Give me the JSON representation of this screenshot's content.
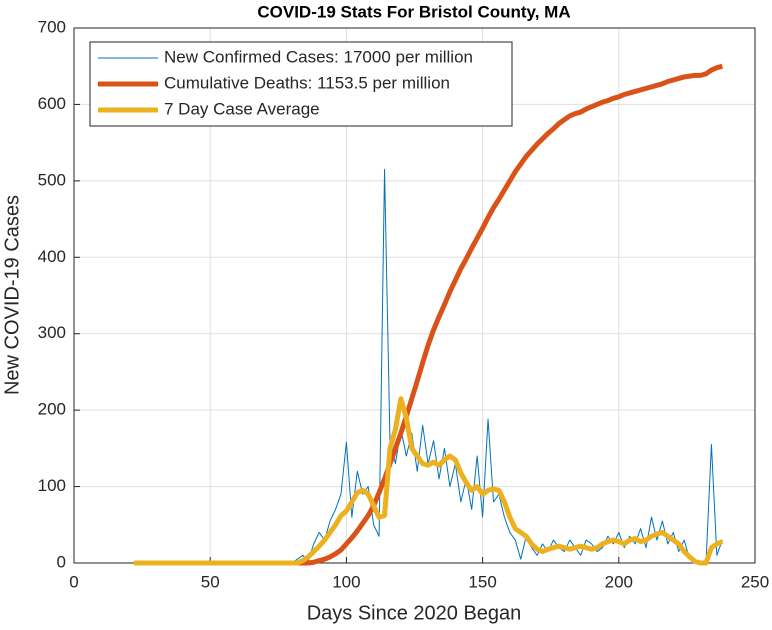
{
  "chart_data": {
    "type": "line",
    "title": "COVID-19 Stats For Bristol County, MA",
    "x_label": "Days Since 2020 Began",
    "y_label": "New COVID-19 Cases",
    "x": [
      22,
      24,
      26,
      28,
      30,
      32,
      34,
      36,
      38,
      40,
      42,
      44,
      46,
      48,
      50,
      52,
      54,
      56,
      58,
      60,
      62,
      64,
      66,
      68,
      70,
      72,
      74,
      76,
      78,
      80,
      82,
      84,
      86,
      88,
      90,
      92,
      94,
      96,
      98,
      100,
      102,
      104,
      106,
      108,
      110,
      112,
      114,
      116,
      118,
      120,
      122,
      124,
      126,
      128,
      130,
      132,
      134,
      136,
      138,
      140,
      142,
      144,
      146,
      148,
      150,
      152,
      154,
      156,
      158,
      160,
      162,
      164,
      166,
      168,
      170,
      172,
      174,
      176,
      178,
      180,
      182,
      184,
      186,
      188,
      190,
      192,
      194,
      196,
      198,
      200,
      202,
      204,
      206,
      208,
      210,
      212,
      214,
      216,
      218,
      220,
      222,
      224,
      226,
      228,
      230,
      232,
      234,
      236,
      238
    ],
    "series": [
      {
        "name": "New Confirmed Cases: 17000 per million",
        "color": "#0072BD",
        "width": 1,
        "values": [
          0,
          0,
          0,
          0,
          0,
          0,
          0,
          0,
          0,
          0,
          0,
          0,
          0,
          0,
          0,
          0,
          0,
          0,
          0,
          0,
          0,
          0,
          0,
          0,
          0,
          0,
          0,
          0,
          0,
          0,
          5,
          10,
          3,
          25,
          40,
          30,
          55,
          70,
          90,
          158,
          60,
          120,
          90,
          100,
          50,
          35,
          515,
          160,
          130,
          175,
          140,
          170,
          120,
          180,
          130,
          160,
          110,
          150,
          100,
          130,
          80,
          110,
          70,
          140,
          60,
          188,
          80,
          90,
          60,
          40,
          30,
          5,
          35,
          20,
          10,
          25,
          15,
          30,
          20,
          15,
          30,
          20,
          10,
          30,
          25,
          15,
          20,
          35,
          25,
          40,
          20,
          35,
          25,
          45,
          20,
          60,
          30,
          55,
          25,
          40,
          15,
          30,
          5,
          0,
          0,
          0,
          155,
          10,
          30
        ]
      },
      {
        "name": "Cumulative Deaths: 1153.5 per million",
        "color": "#D95319",
        "width": 5,
        "values": [
          0,
          0,
          0,
          0,
          0,
          0,
          0,
          0,
          0,
          0,
          0,
          0,
          0,
          0,
          0,
          0,
          0,
          0,
          0,
          0,
          0,
          0,
          0,
          0,
          0,
          0,
          0,
          0,
          0,
          0,
          0,
          0,
          0,
          1,
          3,
          5,
          8,
          12,
          17,
          25,
          33,
          42,
          52,
          62,
          75,
          92,
          110,
          130,
          150,
          170,
          192,
          215,
          238,
          262,
          285,
          305,
          322,
          338,
          355,
          370,
          385,
          398,
          412,
          425,
          438,
          452,
          465,
          476,
          488,
          500,
          512,
          522,
          532,
          540,
          548,
          555,
          562,
          568,
          575,
          580,
          585,
          588,
          590,
          594,
          597,
          600,
          603,
          605,
          608,
          610,
          613,
          615,
          617,
          619,
          621,
          623,
          625,
          627,
          630,
          632,
          634,
          636,
          637,
          638,
          638,
          640,
          645,
          648,
          650
        ]
      },
      {
        "name": "7 Day Case Average",
        "color": "#EDB120",
        "width": 5,
        "values": [
          0,
          0,
          0,
          0,
          0,
          0,
          0,
          0,
          0,
          0,
          0,
          0,
          0,
          0,
          0,
          0,
          0,
          0,
          0,
          0,
          0,
          0,
          0,
          0,
          0,
          0,
          0,
          0,
          0,
          0,
          0,
          3,
          8,
          15,
          22,
          30,
          40,
          50,
          62,
          68,
          80,
          92,
          95,
          90,
          75,
          60,
          62,
          150,
          175,
          215,
          190,
          150,
          140,
          130,
          128,
          132,
          128,
          135,
          140,
          135,
          118,
          105,
          95,
          100,
          90,
          95,
          97,
          95,
          80,
          60,
          45,
          40,
          35,
          25,
          18,
          15,
          18,
          20,
          22,
          20,
          18,
          20,
          22,
          20,
          18,
          20,
          25,
          28,
          30,
          28,
          25,
          30,
          32,
          28,
          30,
          35,
          38,
          40,
          35,
          30,
          25,
          15,
          8,
          2,
          0,
          0,
          20,
          25,
          28
        ]
      }
    ],
    "xlim": [
      0,
      250
    ],
    "xticks": [
      0,
      50,
      100,
      150,
      200,
      250
    ],
    "ylim": [
      0,
      700
    ],
    "yticks": [
      0,
      100,
      200,
      300,
      400,
      500,
      600,
      700
    ],
    "grid": true,
    "legend": "upper-left"
  }
}
